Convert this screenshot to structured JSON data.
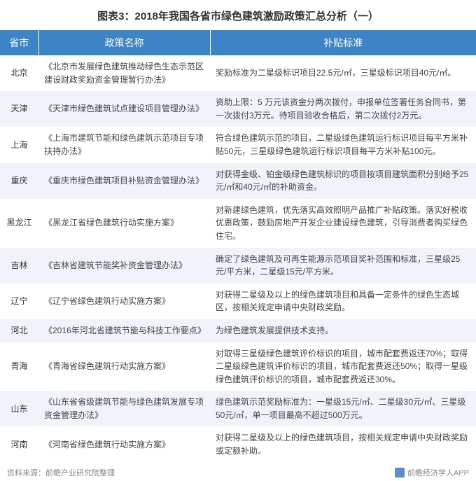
{
  "title": "图表3：2018年我国各省市绿色建筑激励政策汇总分析（一）",
  "columns": {
    "province": "省市",
    "policy": "政策名称",
    "subsidy": "补贴标准"
  },
  "rows": [
    {
      "province": "北京",
      "policy": "《北京市发展绿色建筑推动绿色生态示范区建设财政奖励资金管理暂行办法》",
      "subsidy": "奖励标准为二星级标识项目22.5元/㎡，三星级标识项目40元/㎡。"
    },
    {
      "province": "天津",
      "policy": "《天津市绿色建筑试点建设项目管理办法》",
      "subsidy": "资助上限：5 万元该资金分两次拨付，申报单位签署任务合同书，第一次拨付3万元。待项目验收合格后，第二次拨付2万元。"
    },
    {
      "province": "上海",
      "policy": "《上海市建筑节能和绿色建筑示范项目专项扶持办法》",
      "subsidy": "符合绿色建筑示范的项目，二星级绿色建筑运行标识项目每平方米补贴50元，三星级绿色建筑运行标识项目每平方米补贴100元。"
    },
    {
      "province": "重庆",
      "policy": "《重庆市绿色建筑项目补贴资金管理办法》",
      "subsidy": "对获得金级、铂金级绿色建筑标识的项目按项目建筑面积分别给予25元/㎡和40元/㎡的补助资金。"
    },
    {
      "province": "黑龙江",
      "policy": "《黑龙江省绿色建筑行动实施方案》",
      "subsidy": "对新建绿色建筑，优先落实高效照明产品推广补贴政策。落实好税收优惠政策，鼓励房地产开发企业建设绿色建筑，引导消费者购买绿色住宅。"
    },
    {
      "province": "吉林",
      "policy": "《吉林省建筑节能奖补资金管理办法》",
      "subsidy": "确定了绿色建筑及可再生能源示范项目奖补范围和标准，三星级25元/平方米，二星级15元/平方米。"
    },
    {
      "province": "辽宁",
      "policy": "《辽宁省绿色建筑行动实施方案》",
      "subsidy": "对获得二星级及以上的绿色建筑项目和具备一定条件的绿色生态城区，按相关规定申请中央财政奖励。"
    },
    {
      "province": "河北",
      "policy": "《2016年河北省建筑节能与科技工作要点》",
      "subsidy": "为绿色建筑发展提供技术支持。"
    },
    {
      "province": "青海",
      "policy": "《青海省绿色建筑行动实施方案》",
      "subsidy": "对取得三星级绿色建筑评价标识的项目，城市配套费返还70%；取得二星级绿色建筑评价标识的项目，城市配套费返还50%；取得一星级绿色建筑评价标识的项目，城市配套费返还30%。"
    },
    {
      "province": "山东",
      "policy": "《山东省省级建筑节能与绿色建筑发展专项资金管理办法》",
      "subsidy": "绿色建筑示范奖励标准为：一星级15元/㎡、二星级30元/㎡、三星级50元/㎡，单一项目最高不超过500万元。"
    },
    {
      "province": "河南",
      "policy": "《河南省绿色建筑行动实施方案》",
      "subsidy": "对获得二星级及以上的绿色建筑项目，按相关规定申请中央财政奖励或定额补助。"
    }
  ],
  "footer": {
    "source": "资料来源：前瞻产业研究院整理",
    "brand": "前瞻经济学人APP"
  },
  "colors": {
    "header_bg": "#3d84c6",
    "header_text": "#ffffff",
    "row_even_bg": "#f0f4fa",
    "row_odd_bg": "#ffffff",
    "text": "#444444",
    "footer_text": "#888888"
  }
}
